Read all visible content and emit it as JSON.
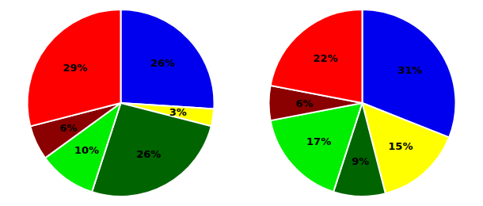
{
  "chart_data": [
    {
      "type": "pie",
      "values": [
        26,
        3,
        26,
        10,
        6,
        29
      ],
      "value_labels": [
        "26%",
        "3%",
        "26%",
        "10%",
        "6%",
        "29%"
      ],
      "colors": [
        "#0000ee",
        "#ffff00",
        "#006400",
        "#00ee00",
        "#8b0000",
        "#ff0000"
      ],
      "data_labels": true
    },
    {
      "type": "pie",
      "values": [
        31,
        15,
        9,
        17,
        6,
        22
      ],
      "value_labels": [
        "31%",
        "15%",
        "9%",
        "17%",
        "6%",
        "22%"
      ],
      "colors": [
        "#0000ee",
        "#ffff00",
        "#006400",
        "#00ee00",
        "#8b0000",
        "#ff0000"
      ],
      "data_labels": true
    }
  ]
}
